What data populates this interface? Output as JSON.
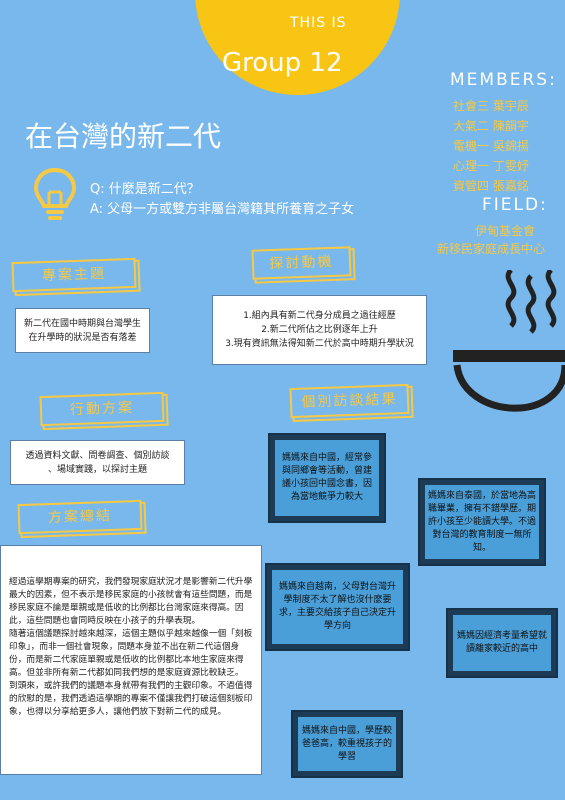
{
  "header": {
    "this_is": "THIS IS",
    "group": "Group 12"
  },
  "members": {
    "label": "MEMBERS:",
    "names": [
      "社會三 葉宇辰",
      "大氣二 陳韻宇",
      "電機一 吳錦揚",
      "心理一 丁雯妤",
      "資管四 張嘉銘"
    ]
  },
  "field": {
    "label": "FIELD:",
    "lines": [
      "伊甸基金會",
      "新移民家庭成長中心"
    ]
  },
  "title": "在台灣的新二代",
  "qa": {
    "q": "Q: 什麼是新二代？",
    "a": "A: 父母一方或雙方非屬台灣籍其所養育之子女"
  },
  "sections": {
    "theme": {
      "label": "專案主題",
      "text": [
        "新二代在國中時期與台灣學生",
        "在升學時的狀況是否有落差"
      ]
    },
    "motive": {
      "label": "探討動機",
      "text": [
        "1.組內具有新二代身分成員之過往經歷",
        "2.新二代所佔之比例逐年上升",
        "3.現有資訊無法得知新二代於高中時期升學狀況"
      ]
    },
    "plan": {
      "label": "行動方案",
      "text": [
        "透過資料文獻、問卷調查、個別訪談",
        "、場域實踐，以探討主題"
      ]
    },
    "interview": {
      "label": "個別訪談結果"
    },
    "summary": {
      "label": "方案總結",
      "text": "經過這學期專案的研究，我們發現家庭狀況才是影響新二代升學最大的因素，但不表示是移民家庭的小孩就會有這些問題，而是移民家庭不論是單親或是低收的比例都比台灣家庭來得高。因此，這些問題也會同時反映在小孩子的升學表現。\n隨著這個議題探討越來越深，這個主題似乎越來越像一個「刻板印象」，而非一個社會現象，問題本身並不出在新二代這個身份，而是新二代家庭單親或是低收的比例都比本地生家庭來得高。但並非所有新二代都如同我們想的是家庭資源比較缺乏。\n到頭來，或許我們的議題本身就帶有我們的主觀印象。不過值得的欣慰的是，我們透過這學期的專案不僅讓我們打破這個刻板印象，也得以分享給更多人，讓他們放下對新二代的成見。"
    }
  },
  "boards": [
    "媽媽來自中國，經常參與同鄉會等活動，曾建議小孩回中國念書，因為當地競爭力較大",
    "媽媽來自泰國，於當地為高職畢業，擁有不錯學歷。期許小孩至少能讀大學。不過對台灣的教育制度一無所知。",
    "媽媽來自越南，父母對台灣升學制度不太了解也沒什麼要求，主要交給孩子自己決定升學方向",
    "媽媽因經濟考量希望就讀離家較近的高中",
    "媽媽來自中國，學歷較爸爸高，較重視孩子的學習"
  ],
  "colors": {
    "background": "#79b8ec",
    "accent": "#f9c515",
    "label": "#f6c944",
    "board": "#1d3b55"
  }
}
